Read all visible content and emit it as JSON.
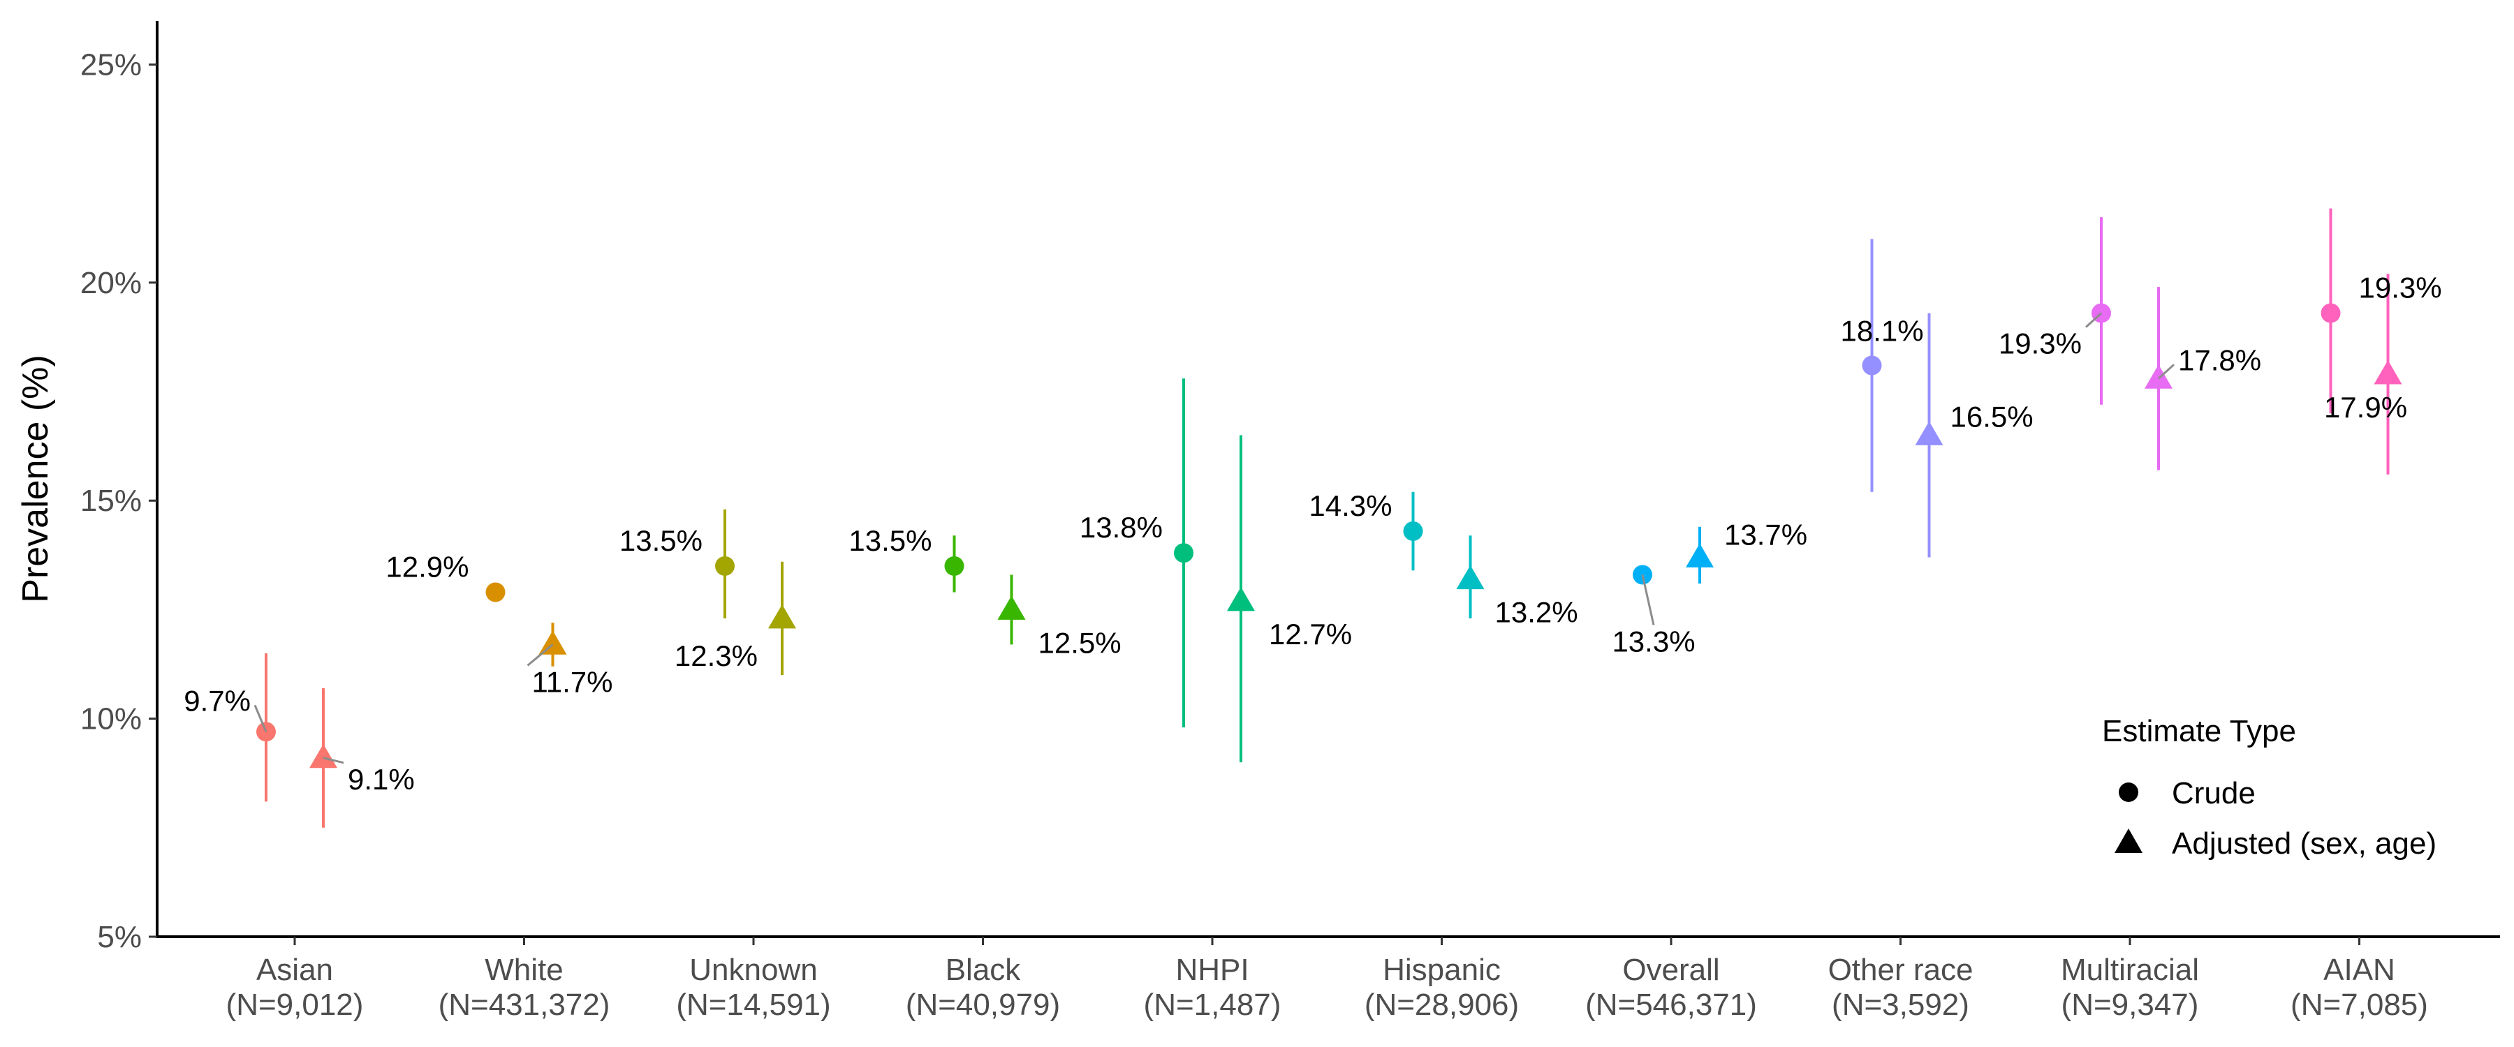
{
  "chart_data": {
    "type": "scatter",
    "title": "",
    "xlabel": "",
    "ylabel": "Prevalence (%)",
    "ylim": [
      5,
      26
    ],
    "yticks": [
      "5%",
      "10%",
      "15%",
      "20%",
      "25%"
    ],
    "ytick_values": [
      5,
      10,
      15,
      20,
      25
    ],
    "grid": false,
    "legend": {
      "title": "Estimate Type",
      "placement": "bottom-right",
      "entries": [
        {
          "label": "Crude",
          "shape": "circle"
        },
        {
          "label": "Adjusted (sex, age)",
          "shape": "triangle"
        }
      ]
    },
    "categories": [
      {
        "name": "Asian",
        "n": "(N=9,012)",
        "color": "#F8766D",
        "crude": {
          "value": 9.7,
          "low": 8.1,
          "high": 11.5,
          "label": "9.7%"
        },
        "adjusted": {
          "value": 9.1,
          "low": 7.5,
          "high": 10.7,
          "label": "9.1%"
        }
      },
      {
        "name": "White",
        "n": "(N=431,372)",
        "color": "#D89000",
        "crude": {
          "value": 12.9,
          "low": 12.9,
          "high": 12.9,
          "label": "12.9%"
        },
        "adjusted": {
          "value": 11.7,
          "low": 11.2,
          "high": 12.2,
          "label": "11.7%"
        }
      },
      {
        "name": "Unknown",
        "n": "(N=14,591)",
        "color": "#A3A500",
        "crude": {
          "value": 13.5,
          "low": 12.3,
          "high": 14.8,
          "label": "13.5%"
        },
        "adjusted": {
          "value": 12.3,
          "low": 11.0,
          "high": 13.6,
          "label": "12.3%"
        }
      },
      {
        "name": "Black",
        "n": "(N=40,979)",
        "color": "#39B600",
        "crude": {
          "value": 13.5,
          "low": 12.9,
          "high": 14.2,
          "label": "13.5%"
        },
        "adjusted": {
          "value": 12.5,
          "low": 11.7,
          "high": 13.3,
          "label": "12.5%"
        }
      },
      {
        "name": "NHPI",
        "n": "(N=1,487)",
        "color": "#00BF7D",
        "crude": {
          "value": 13.8,
          "low": 9.8,
          "high": 17.8,
          "label": "13.8%"
        },
        "adjusted": {
          "value": 12.7,
          "low": 9.0,
          "high": 16.5,
          "label": "12.7%"
        }
      },
      {
        "name": "Hispanic",
        "n": "(N=28,906)",
        "color": "#00BFC4",
        "crude": {
          "value": 14.3,
          "low": 13.4,
          "high": 15.2,
          "label": "14.3%"
        },
        "adjusted": {
          "value": 13.2,
          "low": 12.3,
          "high": 14.2,
          "label": "13.2%"
        }
      },
      {
        "name": "Overall",
        "n": "(N=546,371)",
        "color": "#00B0F6",
        "crude": {
          "value": 13.3,
          "low": 13.3,
          "high": 13.3,
          "label": "13.3%"
        },
        "adjusted": {
          "value": 13.7,
          "low": 13.1,
          "high": 14.4,
          "label": "13.7%"
        }
      },
      {
        "name": "Other race",
        "n": "(N=3,592)",
        "color": "#9590FF",
        "crude": {
          "value": 18.1,
          "low": 15.2,
          "high": 21.0,
          "label": "18.1%"
        },
        "adjusted": {
          "value": 16.5,
          "low": 13.7,
          "high": 19.3,
          "label": "16.5%"
        }
      },
      {
        "name": "Multiracial",
        "n": "(N=9,347)",
        "color": "#E76BF3",
        "crude": {
          "value": 19.3,
          "low": 17.2,
          "high": 21.5,
          "label": "19.3%"
        },
        "adjusted": {
          "value": 17.8,
          "low": 15.7,
          "high": 19.9,
          "label": "17.8%"
        }
      },
      {
        "name": "AIAN",
        "n": "(N=7,085)",
        "color": "#FF62BC",
        "crude": {
          "value": 19.3,
          "low": 17.0,
          "high": 21.7,
          "label": "19.3%"
        },
        "adjusted": {
          "value": 17.9,
          "low": 15.6,
          "high": 20.2,
          "label": "17.9%"
        }
      }
    ]
  }
}
